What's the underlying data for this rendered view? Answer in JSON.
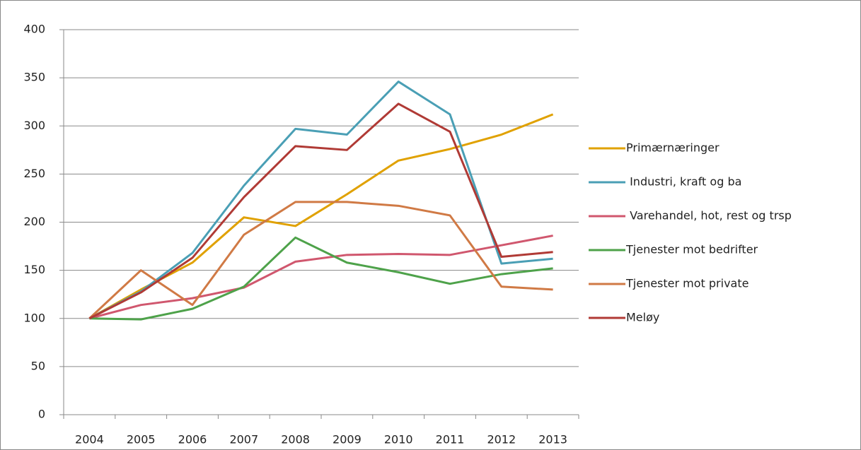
{
  "chart_data": {
    "type": "line",
    "categories": [
      "2004",
      "2005",
      "2006",
      "2007",
      "2008",
      "2009",
      "2010",
      "2011",
      "2012",
      "2013"
    ],
    "series": [
      {
        "name": "Primærnæringer",
        "color": "#e0a100",
        "values": [
          100,
          130,
          158,
          205,
          196,
          229,
          264,
          276,
          291,
          312
        ]
      },
      {
        "name": " Industri, kraft og ba",
        "color": "#4a9fb5",
        "values": [
          100,
          128,
          168,
          238,
          297,
          291,
          346,
          312,
          157,
          162
        ]
      },
      {
        "name": " Varehandel, hot, rest og trsp",
        "color": "#d0576e",
        "values": [
          100,
          114,
          121,
          132,
          159,
          166,
          167,
          166,
          176,
          186
        ]
      },
      {
        "name": "Tjenester mot bedrifter",
        "color": "#4ea24a",
        "values": [
          100,
          99,
          110,
          133,
          184,
          158,
          148,
          136,
          146,
          152
        ]
      },
      {
        "name": "Tjenester mot private",
        "color": "#d07a45",
        "values": [
          100,
          150,
          114,
          187,
          221,
          221,
          217,
          207,
          133,
          130
        ]
      },
      {
        "name": "Meløy",
        "color": "#b03a35",
        "values": [
          100,
          127,
          163,
          226,
          279,
          275,
          323,
          294,
          164,
          169
        ]
      }
    ],
    "ylim": [
      0,
      400
    ],
    "yticks": [
      0,
      50,
      100,
      150,
      200,
      250,
      300,
      350,
      400
    ],
    "grid": true,
    "legend": "right"
  }
}
